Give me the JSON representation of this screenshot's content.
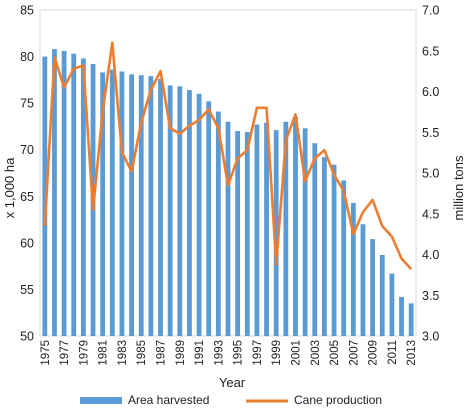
{
  "chart_data": {
    "type": "bar+line",
    "categories": [
      "1975",
      "1976",
      "1977",
      "1978",
      "1979",
      "1980",
      "1981",
      "1982",
      "1983",
      "1984",
      "1985",
      "1986",
      "1987",
      "1988",
      "1989",
      "1990",
      "1991",
      "1992",
      "1993",
      "1994",
      "1995",
      "1996",
      "1997",
      "1998",
      "1999",
      "2000",
      "2001",
      "2002",
      "2003",
      "2004",
      "2005",
      "2006",
      "2007",
      "2008",
      "2009",
      "2010",
      "2011",
      "2012",
      "2013"
    ],
    "tick_labels": [
      "1975",
      "1977",
      "1979",
      "1981",
      "1983",
      "1985",
      "1987",
      "1989",
      "1991",
      "1993",
      "1995",
      "1997",
      "1999",
      "2001",
      "2003",
      "2005",
      "2007",
      "2009",
      "2011",
      "2013"
    ],
    "xlabel": "Year",
    "ylabel_left": "x 1,000 ha",
    "ylabel_right": "million tons",
    "ylim_left": [
      50,
      85
    ],
    "yticks_left": [
      "50",
      "55",
      "60",
      "65",
      "70",
      "75",
      "80",
      "85"
    ],
    "ylim_right": [
      3.0,
      7.0
    ],
    "yticks_right": [
      "3.0",
      "3.5",
      "4.0",
      "4.5",
      "5.0",
      "5.5",
      "6.0",
      "6.5",
      "7.0"
    ],
    "legend_position": "bottom",
    "series": [
      {
        "name": "Area harvested",
        "kind": "bar",
        "axis": "left",
        "color": "#5B9BD5",
        "values": [
          80.0,
          80.8,
          80.6,
          80.3,
          79.8,
          79.2,
          78.3,
          78.6,
          78.4,
          78.1,
          78.0,
          77.9,
          77.6,
          76.9,
          76.8,
          76.4,
          76.0,
          75.2,
          74.1,
          73.0,
          72.0,
          71.9,
          72.7,
          72.9,
          72.1,
          73.0,
          73.5,
          72.3,
          70.7,
          69.2,
          68.4,
          66.7,
          64.3,
          62.0,
          60.4,
          58.7,
          56.7,
          54.2,
          53.5
        ]
      },
      {
        "name": "Cane production",
        "kind": "line",
        "axis": "right",
        "color": "#ED7D31",
        "values": [
          4.35,
          6.42,
          6.05,
          6.28,
          6.32,
          4.55,
          5.75,
          6.6,
          5.25,
          5.02,
          5.62,
          6.02,
          6.25,
          5.55,
          5.48,
          5.58,
          5.65,
          5.78,
          5.55,
          4.85,
          5.18,
          5.28,
          5.8,
          5.8,
          3.88,
          5.4,
          5.72,
          4.9,
          5.18,
          5.28,
          4.98,
          4.78,
          4.25,
          4.52,
          4.67,
          4.35,
          4.22,
          3.95,
          3.82
        ]
      }
    ]
  }
}
